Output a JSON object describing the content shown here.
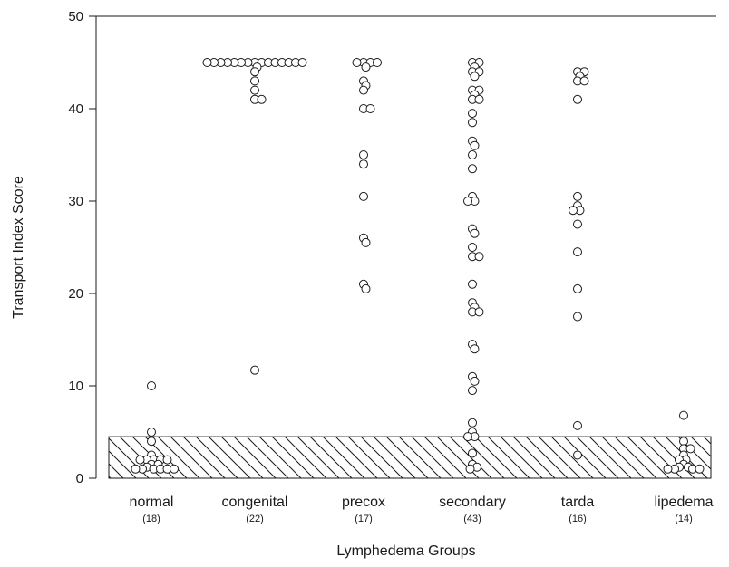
{
  "chart_data": {
    "type": "scatter",
    "title": "",
    "xlabel": "Lymphedema Groups",
    "ylabel": "Transport Index Score",
    "ylim": [
      0,
      50
    ],
    "yticks": [
      "0",
      "10",
      "20",
      "30",
      "40",
      "50"
    ],
    "grid": false,
    "reference_band": {
      "label": "",
      "y_min": 0,
      "y_max": 4.5,
      "pattern": "diagonal-hatch"
    },
    "categories": [
      {
        "name": "normal",
        "count": "(18)",
        "values": [
          10,
          5,
          4,
          2.5,
          2,
          2,
          2,
          2,
          2,
          1.5,
          1.5,
          1.2,
          1,
          1,
          1,
          1,
          1,
          1
        ]
      },
      {
        "name": "congenital",
        "count": "(22)",
        "values": [
          45,
          45,
          45,
          45,
          45,
          45,
          45,
          45,
          45,
          45,
          45,
          45,
          45,
          45,
          45,
          44.5,
          44,
          43,
          42,
          41,
          41,
          11.7
        ]
      },
      {
        "name": "precox",
        "count": "(17)",
        "values": [
          45,
          45,
          45,
          45,
          44.5,
          43,
          42.5,
          42,
          40,
          40,
          35,
          34,
          30.5,
          26,
          25.5,
          21,
          20.5
        ]
      },
      {
        "name": "secondary",
        "count": "(43)",
        "values": [
          45,
          45,
          44.5,
          44,
          44,
          43.5,
          42,
          42,
          41.5,
          41,
          41,
          39.5,
          38.5,
          36.5,
          36,
          35,
          33.5,
          30.5,
          30,
          30,
          27,
          26.5,
          25,
          24,
          24,
          21,
          19,
          18.5,
          18,
          18,
          14.5,
          14,
          11,
          10.5,
          9.5,
          6,
          5,
          4.5,
          4.5,
          2.7,
          1.5,
          1.2,
          1
        ]
      },
      {
        "name": "tarda",
        "count": "(16)",
        "values": [
          44,
          44,
          43.5,
          43,
          43,
          41,
          30.5,
          29.5,
          29,
          29,
          27.5,
          24.5,
          20.5,
          17.5,
          5.7,
          2.5
        ]
      },
      {
        "name": "lipedema",
        "count": "(14)",
        "values": [
          6.8,
          4,
          3.2,
          3.2,
          2.5,
          2,
          2,
          1.5,
          1.2,
          1.2,
          1,
          1,
          1,
          1
        ]
      }
    ]
  }
}
